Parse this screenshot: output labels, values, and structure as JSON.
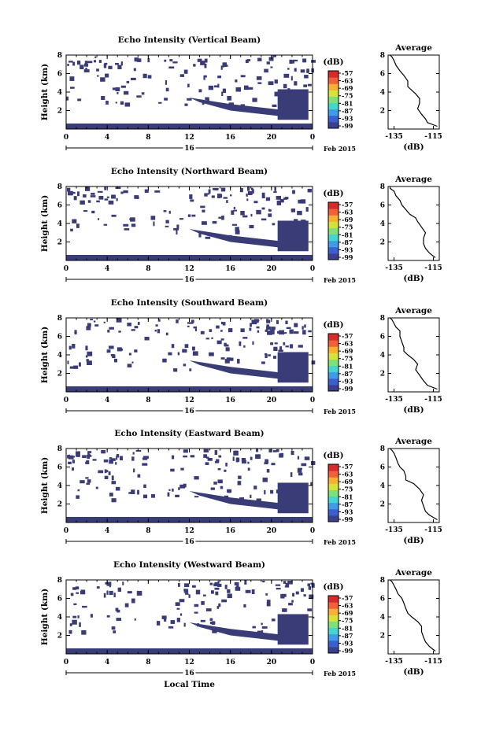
{
  "panels": [
    {
      "title": "Echo Intensity (Vertical Beam)"
    },
    {
      "title": "Echo Intensity (Northward Beam)"
    },
    {
      "title": "Echo Intensity (Southward Beam)"
    },
    {
      "title": "Echo Intensity (Eastward Beam)"
    },
    {
      "title": "Echo Intensity (Westward Beam)"
    }
  ],
  "common": {
    "ylabel": "Height (km)",
    "xlabel": "Local Time",
    "date_label": "Feb 2015",
    "day_label": "16",
    "x_ticks": [
      "0",
      "4",
      "8",
      "12",
      "16",
      "20",
      "0"
    ],
    "y_ticks": [
      "2",
      "4",
      "6",
      "8"
    ],
    "colorbar_unit": "(dB)",
    "colorbar_ticks": [
      "-57",
      "-63",
      "-69",
      "-75",
      "-81",
      "-87",
      "-93",
      "-99"
    ],
    "colorbar_colors": [
      "#3a3f8f",
      "#3b5fcf",
      "#3f9ae8",
      "#46d4d0",
      "#7fe07a",
      "#d6e23c",
      "#f6b033",
      "#f0603a",
      "#d72a2a"
    ],
    "mask_color": "#3a3c78",
    "avg_title": "Average",
    "avg_xlabel": "(dB)",
    "avg_xticks": [
      "-135",
      "-115"
    ],
    "avg_yticks": [
      "2",
      "4",
      "6",
      "8"
    ]
  },
  "chart_data": [
    {
      "type": "heatmap",
      "title": "Echo Intensity (Vertical Beam)",
      "xlabel": "Local Time",
      "ylabel": "Height (km)",
      "xlim": [
        0,
        24
      ],
      "ylim": [
        0,
        8
      ],
      "profile": {
        "title": "Average",
        "xlabel": "(dB)",
        "xlim": [
          -138,
          -112
        ],
        "ylim": [
          0,
          8
        ],
        "x": [
          -113,
          -118,
          -119,
          -121,
          -123,
          -122,
          -122,
          -124,
          -126,
          -128,
          -128,
          -130,
          -132,
          -134,
          -135,
          -136,
          -137
        ],
        "y": [
          0.3,
          0.7,
          1.1,
          1.6,
          2.2,
          2.8,
          3.3,
          3.8,
          4.2,
          4.6,
          5.2,
          5.8,
          6.3,
          6.9,
          7.4,
          7.8,
          8.0
        ]
      }
    },
    {
      "type": "heatmap",
      "title": "Echo Intensity (Northward Beam)",
      "xlabel": "Local Time",
      "ylabel": "Height (km)",
      "xlim": [
        0,
        24
      ],
      "ylim": [
        0,
        8
      ],
      "profile": {
        "title": "Average",
        "xlabel": "(dB)",
        "xlim": [
          -138,
          -112
        ],
        "ylim": [
          0,
          8
        ],
        "x": [
          -114,
          -117,
          -119,
          -120,
          -120,
          -119,
          -121,
          -123,
          -124,
          -127,
          -129,
          -131,
          -132,
          -134,
          -135,
          -137,
          -137
        ],
        "y": [
          0.3,
          0.8,
          1.3,
          1.8,
          2.4,
          3.0,
          3.6,
          4.2,
          4.6,
          5.0,
          5.5,
          6.0,
          6.5,
          7.0,
          7.5,
          7.8,
          8.0
        ]
      }
    },
    {
      "type": "heatmap",
      "title": "Echo Intensity (Southward Beam)",
      "xlabel": "Local Time",
      "ylabel": "Height (km)",
      "xlim": [
        0,
        24
      ],
      "ylim": [
        0,
        8
      ],
      "profile": {
        "title": "Average",
        "xlabel": "(dB)",
        "xlim": [
          -138,
          -112
        ],
        "ylim": [
          0,
          8
        ],
        "x": [
          -113,
          -118,
          -120,
          -122,
          -124,
          -123,
          -125,
          -128,
          -130,
          -130,
          -131,
          -132,
          -132,
          -134,
          -135,
          -136,
          -137
        ],
        "y": [
          0.3,
          0.7,
          1.2,
          1.8,
          2.4,
          3.0,
          3.5,
          4.0,
          4.4,
          4.8,
          5.4,
          6.0,
          6.6,
          7.0,
          7.4,
          7.8,
          8.0
        ]
      }
    },
    {
      "type": "heatmap",
      "title": "Echo Intensity (Eastward Beam)",
      "xlabel": "Local Time",
      "ylabel": "Height (km)",
      "xlim": [
        0,
        24
      ],
      "ylim": [
        0,
        8
      ],
      "profile": {
        "title": "Average",
        "xlabel": "(dB)",
        "xlim": [
          -138,
          -112
        ],
        "ylim": [
          0,
          8
        ],
        "x": [
          -113,
          -117,
          -119,
          -120,
          -121,
          -120,
          -122,
          -125,
          -129,
          -129,
          -130,
          -132,
          -133,
          -134,
          -135,
          -136,
          -137
        ],
        "y": [
          0.3,
          0.8,
          1.2,
          1.8,
          2.4,
          3.0,
          3.6,
          4.2,
          4.6,
          5.0,
          5.6,
          6.0,
          6.4,
          7.0,
          7.5,
          7.8,
          8.0
        ]
      }
    },
    {
      "type": "heatmap",
      "title": "Echo Intensity (Westward Beam)",
      "xlabel": "Local Time",
      "ylabel": "Height (km)",
      "xlim": [
        0,
        24
      ],
      "ylim": [
        0,
        8
      ],
      "profile": {
        "title": "Average",
        "xlabel": "(dB)",
        "xlim": [
          -138,
          -112
        ],
        "ylim": [
          0,
          8
        ],
        "x": [
          -114,
          -117,
          -119,
          -120,
          -121,
          -121,
          -123,
          -126,
          -128,
          -129,
          -130,
          -131,
          -133,
          -134,
          -135,
          -136,
          -137
        ],
        "y": [
          0.3,
          0.8,
          1.3,
          1.8,
          2.4,
          3.0,
          3.5,
          4.0,
          4.4,
          4.9,
          5.5,
          6.0,
          6.5,
          7.0,
          7.4,
          7.8,
          8.0
        ]
      }
    }
  ]
}
